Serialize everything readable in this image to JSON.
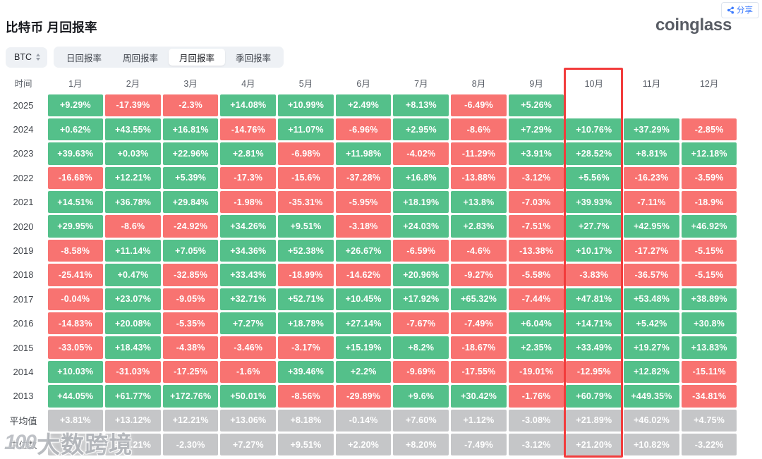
{
  "share": {
    "label": "分享"
  },
  "logo_text": "coinglass",
  "title": "比特币 月回报率",
  "symbol_select": {
    "value": "BTC"
  },
  "tabs": [
    {
      "label": "日回报率",
      "active": false
    },
    {
      "label": "周回报率",
      "active": false
    },
    {
      "label": "月回报率",
      "active": true
    },
    {
      "label": "季回报率",
      "active": false
    }
  ],
  "watermark": {
    "logo": "100",
    "text": "大数跨境"
  },
  "colors": {
    "positive": "#54c08a",
    "negative": "#f87371",
    "neutral": "#c5c6c8",
    "highlight_border": "#f23c3c",
    "accent_blue": "#3c7bfe"
  },
  "table": {
    "time_header": "时间",
    "month_headers": [
      "1月",
      "2月",
      "3月",
      "4月",
      "5月",
      "6月",
      "7月",
      "8月",
      "9月",
      "10月",
      "11月",
      "12月"
    ],
    "highlighted_month": "10月",
    "rows": [
      {
        "label": "2025",
        "values": [
          "+9.29%",
          "-17.39%",
          "-2.3%",
          "+14.08%",
          "+10.99%",
          "+2.49%",
          "+8.13%",
          "-6.49%",
          "+5.26%",
          "",
          "",
          ""
        ],
        "colors": [
          "g",
          "r",
          "r",
          "g",
          "g",
          "g",
          "g",
          "r",
          "g",
          "e",
          "e",
          "e"
        ]
      },
      {
        "label": "2024",
        "values": [
          "+0.62%",
          "+43.55%",
          "+16.81%",
          "-14.76%",
          "+11.07%",
          "-6.96%",
          "+2.95%",
          "-8.6%",
          "+7.29%",
          "+10.76%",
          "+37.29%",
          "-2.85%"
        ],
        "colors": [
          "g",
          "g",
          "g",
          "r",
          "g",
          "r",
          "g",
          "r",
          "g",
          "g",
          "g",
          "r"
        ]
      },
      {
        "label": "2023",
        "values": [
          "+39.63%",
          "+0.03%",
          "+22.96%",
          "+2.81%",
          "-6.98%",
          "+11.98%",
          "-4.02%",
          "-11.29%",
          "+3.91%",
          "+28.52%",
          "+8.81%",
          "+12.18%"
        ],
        "colors": [
          "g",
          "g",
          "g",
          "g",
          "r",
          "g",
          "r",
          "r",
          "g",
          "g",
          "g",
          "g"
        ]
      },
      {
        "label": "2022",
        "values": [
          "-16.68%",
          "+12.21%",
          "+5.39%",
          "-17.3%",
          "-15.6%",
          "-37.28%",
          "+16.8%",
          "-13.88%",
          "-3.12%",
          "+5.56%",
          "-16.23%",
          "-3.59%"
        ],
        "colors": [
          "r",
          "g",
          "g",
          "r",
          "r",
          "r",
          "g",
          "r",
          "r",
          "g",
          "r",
          "r"
        ]
      },
      {
        "label": "2021",
        "values": [
          "+14.51%",
          "+36.78%",
          "+29.84%",
          "-1.98%",
          "-35.31%",
          "-5.95%",
          "+18.19%",
          "+13.8%",
          "-7.03%",
          "+39.93%",
          "-7.11%",
          "-18.9%"
        ],
        "colors": [
          "g",
          "g",
          "g",
          "r",
          "r",
          "r",
          "g",
          "g",
          "r",
          "g",
          "r",
          "r"
        ]
      },
      {
        "label": "2020",
        "values": [
          "+29.95%",
          "-8.6%",
          "-24.92%",
          "+34.26%",
          "+9.51%",
          "-3.18%",
          "+24.03%",
          "+2.83%",
          "-7.51%",
          "+27.7%",
          "+42.95%",
          "+46.92%"
        ],
        "colors": [
          "g",
          "r",
          "r",
          "g",
          "g",
          "r",
          "g",
          "g",
          "r",
          "g",
          "g",
          "g"
        ]
      },
      {
        "label": "2019",
        "values": [
          "-8.58%",
          "+11.14%",
          "+7.05%",
          "+34.36%",
          "+52.38%",
          "+26.67%",
          "-6.59%",
          "-4.6%",
          "-13.38%",
          "+10.17%",
          "-17.27%",
          "-5.15%"
        ],
        "colors": [
          "r",
          "g",
          "g",
          "g",
          "g",
          "g",
          "r",
          "r",
          "r",
          "g",
          "r",
          "r"
        ]
      },
      {
        "label": "2018",
        "values": [
          "-25.41%",
          "+0.47%",
          "-32.85%",
          "+33.43%",
          "-18.99%",
          "-14.62%",
          "+20.96%",
          "-9.27%",
          "-5.58%",
          "-3.83%",
          "-36.57%",
          "-5.15%"
        ],
        "colors": [
          "r",
          "g",
          "r",
          "g",
          "r",
          "r",
          "g",
          "r",
          "r",
          "r",
          "r",
          "r"
        ]
      },
      {
        "label": "2017",
        "values": [
          "-0.04%",
          "+23.07%",
          "-9.05%",
          "+32.71%",
          "+52.71%",
          "+10.45%",
          "+17.92%",
          "+65.32%",
          "-7.44%",
          "+47.81%",
          "+53.48%",
          "+38.89%"
        ],
        "colors": [
          "r",
          "g",
          "r",
          "g",
          "g",
          "g",
          "g",
          "g",
          "r",
          "g",
          "g",
          "g"
        ]
      },
      {
        "label": "2016",
        "values": [
          "-14.83%",
          "+20.08%",
          "-5.35%",
          "+7.27%",
          "+18.78%",
          "+27.14%",
          "-7.67%",
          "-7.49%",
          "+6.04%",
          "+14.71%",
          "+5.42%",
          "+30.8%"
        ],
        "colors": [
          "r",
          "g",
          "r",
          "g",
          "g",
          "g",
          "r",
          "r",
          "g",
          "g",
          "g",
          "g"
        ]
      },
      {
        "label": "2015",
        "values": [
          "-33.05%",
          "+18.43%",
          "-4.38%",
          "-3.46%",
          "-3.17%",
          "+15.19%",
          "+8.2%",
          "-18.67%",
          "+2.35%",
          "+33.49%",
          "+19.27%",
          "+13.83%"
        ],
        "colors": [
          "r",
          "g",
          "r",
          "r",
          "r",
          "g",
          "g",
          "r",
          "g",
          "g",
          "g",
          "g"
        ]
      },
      {
        "label": "2014",
        "values": [
          "+10.03%",
          "-31.03%",
          "-17.25%",
          "-1.6%",
          "+39.46%",
          "+2.2%",
          "-9.69%",
          "-17.55%",
          "-19.01%",
          "-12.95%",
          "+12.82%",
          "-15.11%"
        ],
        "colors": [
          "g",
          "r",
          "r",
          "r",
          "g",
          "g",
          "r",
          "r",
          "r",
          "r",
          "g",
          "r"
        ]
      },
      {
        "label": "2013",
        "values": [
          "+44.05%",
          "+61.77%",
          "+172.76%",
          "+50.01%",
          "-8.56%",
          "-29.89%",
          "+9.6%",
          "+30.42%",
          "-1.76%",
          "+60.79%",
          "+449.35%",
          "-34.81%"
        ],
        "colors": [
          "g",
          "g",
          "g",
          "g",
          "r",
          "r",
          "g",
          "g",
          "r",
          "g",
          "g",
          "r"
        ]
      },
      {
        "label": "平均值",
        "values": [
          "+3.81%",
          "+13.12%",
          "+12.21%",
          "+13.06%",
          "+8.18%",
          "-0.14%",
          "+7.60%",
          "+1.12%",
          "-3.08%",
          "+21.89%",
          "+46.02%",
          "+4.75%"
        ],
        "colors": [
          "n",
          "n",
          "n",
          "n",
          "n",
          "n",
          "n",
          "n",
          "n",
          "n",
          "n",
          "n"
        ]
      },
      {
        "label": "中位数",
        "values": [
          "",
          "+12.21%",
          "-2.30%",
          "+7.27%",
          "+9.51%",
          "+2.20%",
          "+8.20%",
          "-7.49%",
          "-3.12%",
          "+21.20%",
          "+10.82%",
          "-3.22%"
        ],
        "colors": [
          "n",
          "n",
          "n",
          "n",
          "n",
          "n",
          "n",
          "n",
          "n",
          "n",
          "n",
          "n"
        ]
      }
    ]
  }
}
